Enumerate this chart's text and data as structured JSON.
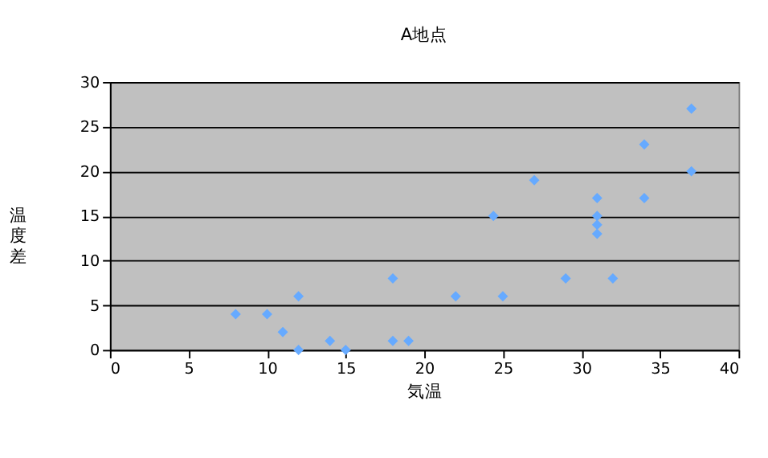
{
  "chart_data": {
    "type": "scatter",
    "title": "A地点",
    "xlabel": "気温",
    "ylabel": "温度差",
    "x": [
      8,
      10,
      11,
      12,
      12,
      14,
      15,
      18,
      18,
      19,
      22,
      24.4,
      25,
      27,
      29,
      31,
      31,
      31,
      31,
      32,
      34,
      34,
      37,
      37
    ],
    "series": [
      {
        "color": "#66aaff",
        "values": [
          4,
          4,
          2,
          6,
          0,
          1,
          0,
          8,
          1,
          1,
          6,
          15,
          6,
          19,
          8,
          17,
          15,
          14,
          13,
          8,
          23,
          17,
          27,
          20
        ]
      }
    ],
    "xlim": [
      0,
      40
    ],
    "xticks": [
      0,
      5,
      10,
      15,
      20,
      25,
      30,
      35,
      40
    ],
    "ylim": [
      0,
      30
    ],
    "yticks": [
      0,
      5,
      10,
      15,
      20,
      25,
      30
    ],
    "grid": "y",
    "marker": "diamond",
    "legend": false
  }
}
